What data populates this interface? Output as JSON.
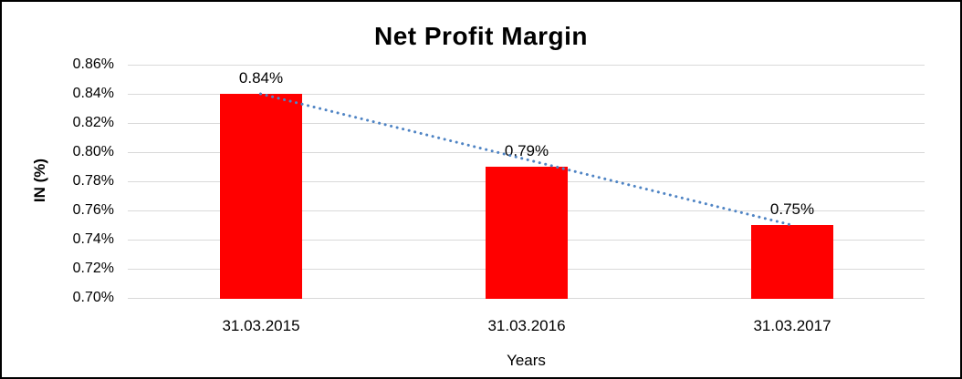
{
  "chart_data": {
    "type": "bar",
    "title": "Net Profit Margin",
    "xlabel": "Years",
    "ylabel": "IN (%)",
    "categories": [
      "31.03.2015",
      "31.03.2016",
      "31.03.2017"
    ],
    "values": [
      0.84,
      0.79,
      0.75
    ],
    "data_labels": [
      "0.84%",
      "0.79%",
      "0.75%"
    ],
    "ylim": [
      0.7,
      0.86
    ],
    "ytick_labels": [
      "0.86%",
      "0.84%",
      "0.82%",
      "0.80%",
      "0.78%",
      "0.76%",
      "0.74%",
      "0.72%",
      "0.70%"
    ],
    "grid": "horizontal",
    "legend": "none",
    "bar_color": "#ff0000",
    "gridline_color": "#d9d9d9",
    "trendline": {
      "type": "linear",
      "style": "dotted",
      "color": "#4f84c4"
    },
    "frame_border_color": "#000000"
  }
}
